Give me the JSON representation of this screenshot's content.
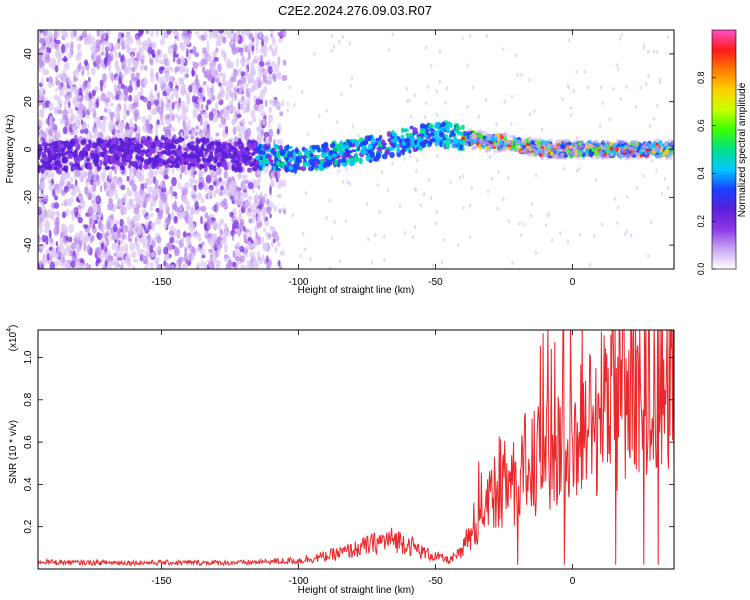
{
  "figure": {
    "title": "C2E2.2024.276.09.03.R07"
  },
  "chart_data": [
    {
      "type": "heatmap",
      "xlabel": "Height of straight line (km)",
      "ylabel": "Frequency (Hz)",
      "xlim": [
        -195,
        37
      ],
      "ylim": [
        -50,
        50
      ],
      "xticks": [
        -150,
        -100,
        -50,
        0
      ],
      "yticks": [
        -40,
        -20,
        0,
        20,
        40
      ],
      "grid": false,
      "center_track": {
        "x": [
          -195,
          -170,
          -150,
          -130,
          -115,
          -100,
          -90,
          -80,
          -70,
          -60,
          -50,
          -45,
          -40,
          -35,
          -30,
          -25,
          -20,
          -15,
          -10,
          0,
          10,
          20,
          37
        ],
        "y": [
          -3,
          -2,
          -1,
          -2,
          -3,
          -4,
          -3,
          -1,
          1,
          4,
          7,
          6,
          5,
          4,
          3,
          3,
          2,
          1,
          0,
          0,
          0,
          0,
          0
        ]
      },
      "colorbar": {
        "label": "Normalized spectral amplitude",
        "range": [
          0,
          1
        ],
        "ticks": [
          "0.0",
          "0.2",
          "0.4",
          "0.6",
          "0.8"
        ],
        "colors": [
          "#ffffff",
          "#c9a6f2",
          "#8e37e8",
          "#5a1fd8",
          "#1a3fff",
          "#00c8ff",
          "#00e08a",
          "#3cff00",
          "#c8ff00",
          "#ffd000",
          "#ff7a00",
          "#ff1a1a",
          "#ff4fc8"
        ]
      }
    },
    {
      "type": "line",
      "xlabel": "Height of straight line (km)",
      "ylabel": "SNR (10 * v/v)",
      "y_multiplier": "(x10",
      "y_multiplier_exp": "4",
      "xlim": [
        -195,
        37
      ],
      "ylim": [
        0,
        1.13
      ],
      "xticks": [
        -150,
        -100,
        -50,
        0
      ],
      "yticks": [
        "0.2",
        "0.4",
        "0.6",
        "0.8",
        "1.0"
      ],
      "grid": false,
      "series": [
        {
          "color": "#e8282a",
          "x": [
            -195,
            -180,
            -160,
            -140,
            -120,
            -110,
            -100,
            -90,
            -80,
            -75,
            -70,
            -65,
            -60,
            -55,
            -50,
            -45,
            -40,
            -38,
            -35,
            -32,
            -30,
            -25,
            -20,
            -15,
            -10,
            -5,
            0,
            5,
            10,
            15,
            20,
            25,
            30,
            37
          ],
          "y": [
            0.035,
            0.03,
            0.03,
            0.03,
            0.03,
            0.035,
            0.04,
            0.06,
            0.09,
            0.11,
            0.13,
            0.14,
            0.12,
            0.08,
            0.06,
            0.04,
            0.08,
            0.18,
            0.25,
            0.33,
            0.38,
            0.42,
            0.45,
            0.5,
            0.52,
            0.58,
            0.62,
            0.68,
            0.75,
            0.8,
            0.88,
            0.95,
            1.0,
            1.04
          ]
        }
      ]
    }
  ]
}
